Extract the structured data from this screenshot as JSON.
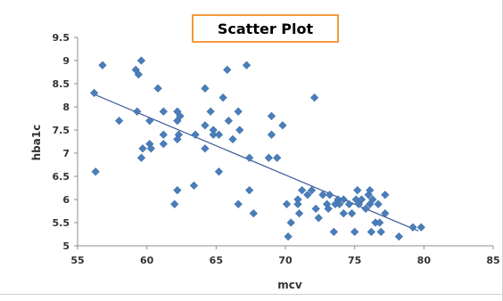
{
  "chart_data": {
    "type": "scatter",
    "title": "Scatter Plot",
    "xlabel": "mcv",
    "ylabel": "hba1c",
    "xlim": [
      55,
      85
    ],
    "ylim": [
      5,
      9.5
    ],
    "x_ticks": [
      "55",
      "60",
      "65",
      "70",
      "75",
      "80",
      "85"
    ],
    "y_ticks": [
      "5",
      "5.5",
      "6",
      "6.5",
      "7",
      "7.5",
      "8",
      "8.5",
      "9",
      "9.5"
    ],
    "grid": false,
    "legend": "none",
    "marker": "diamond",
    "point_color": "#4a7ebb",
    "trendline": {
      "type": "linear",
      "color": "#3b5998",
      "x": [
        56.2,
        79.6
      ],
      "y": [
        8.27,
        5.32
      ]
    },
    "points": [
      {
        "x": 56.2,
        "y": 8.3
      },
      {
        "x": 56.8,
        "y": 8.9
      },
      {
        "x": 56.3,
        "y": 6.6
      },
      {
        "x": 58.0,
        "y": 7.7
      },
      {
        "x": 59.2,
        "y": 8.8
      },
      {
        "x": 59.6,
        "y": 9.0
      },
      {
        "x": 59.4,
        "y": 8.7
      },
      {
        "x": 59.3,
        "y": 7.9
      },
      {
        "x": 59.7,
        "y": 7.1
      },
      {
        "x": 59.6,
        "y": 6.9
      },
      {
        "x": 60.2,
        "y": 7.7
      },
      {
        "x": 60.2,
        "y": 7.2
      },
      {
        "x": 60.3,
        "y": 7.1
      },
      {
        "x": 60.8,
        "y": 8.4
      },
      {
        "x": 61.2,
        "y": 7.9
      },
      {
        "x": 61.2,
        "y": 7.4
      },
      {
        "x": 61.2,
        "y": 7.2
      },
      {
        "x": 62.0,
        "y": 5.9
      },
      {
        "x": 62.2,
        "y": 7.9
      },
      {
        "x": 62.2,
        "y": 7.7
      },
      {
        "x": 62.3,
        "y": 7.4
      },
      {
        "x": 62.2,
        "y": 7.3
      },
      {
        "x": 62.4,
        "y": 7.8
      },
      {
        "x": 62.2,
        "y": 6.2
      },
      {
        "x": 63.4,
        "y": 6.3
      },
      {
        "x": 63.5,
        "y": 7.4
      },
      {
        "x": 64.2,
        "y": 8.4
      },
      {
        "x": 64.2,
        "y": 7.6
      },
      {
        "x": 64.2,
        "y": 7.1
      },
      {
        "x": 64.6,
        "y": 7.9
      },
      {
        "x": 64.8,
        "y": 7.5
      },
      {
        "x": 64.8,
        "y": 7.4
      },
      {
        "x": 65.2,
        "y": 7.4
      },
      {
        "x": 65.2,
        "y": 6.6
      },
      {
        "x": 65.5,
        "y": 8.2
      },
      {
        "x": 65.8,
        "y": 8.8
      },
      {
        "x": 65.9,
        "y": 7.7
      },
      {
        "x": 66.2,
        "y": 7.3
      },
      {
        "x": 66.6,
        "y": 7.9
      },
      {
        "x": 66.7,
        "y": 7.5
      },
      {
        "x": 66.6,
        "y": 5.9
      },
      {
        "x": 67.2,
        "y": 8.9
      },
      {
        "x": 67.4,
        "y": 6.9
      },
      {
        "x": 67.4,
        "y": 6.2
      },
      {
        "x": 67.7,
        "y": 5.7
      },
      {
        "x": 68.8,
        "y": 6.9
      },
      {
        "x": 69.0,
        "y": 7.8
      },
      {
        "x": 69.0,
        "y": 7.4
      },
      {
        "x": 69.4,
        "y": 6.9
      },
      {
        "x": 69.8,
        "y": 7.6
      },
      {
        "x": 70.1,
        "y": 5.9
      },
      {
        "x": 70.2,
        "y": 5.2
      },
      {
        "x": 70.4,
        "y": 5.5
      },
      {
        "x": 70.9,
        "y": 6.0
      },
      {
        "x": 70.9,
        "y": 5.9
      },
      {
        "x": 71.0,
        "y": 5.7
      },
      {
        "x": 71.2,
        "y": 6.2
      },
      {
        "x": 71.6,
        "y": 6.1
      },
      {
        "x": 71.9,
        "y": 6.2
      },
      {
        "x": 72.1,
        "y": 8.2
      },
      {
        "x": 72.2,
        "y": 5.8
      },
      {
        "x": 72.4,
        "y": 5.6
      },
      {
        "x": 72.7,
        "y": 6.1
      },
      {
        "x": 73.0,
        "y": 5.9
      },
      {
        "x": 73.1,
        "y": 5.8
      },
      {
        "x": 73.2,
        "y": 6.1
      },
      {
        "x": 73.5,
        "y": 5.3
      },
      {
        "x": 73.6,
        "y": 5.9
      },
      {
        "x": 73.8,
        "y": 6.0
      },
      {
        "x": 73.9,
        "y": 5.9
      },
      {
        "x": 74.2,
        "y": 5.7
      },
      {
        "x": 74.2,
        "y": 6.0
      },
      {
        "x": 74.6,
        "y": 5.9
      },
      {
        "x": 74.8,
        "y": 5.7
      },
      {
        "x": 75.0,
        "y": 5.3
      },
      {
        "x": 75.1,
        "y": 6.0
      },
      {
        "x": 75.2,
        "y": 6.2
      },
      {
        "x": 75.3,
        "y": 5.9
      },
      {
        "x": 75.5,
        "y": 6.0
      },
      {
        "x": 75.8,
        "y": 5.8
      },
      {
        "x": 76.0,
        "y": 6.1
      },
      {
        "x": 76.1,
        "y": 5.9
      },
      {
        "x": 76.1,
        "y": 6.2
      },
      {
        "x": 76.2,
        "y": 5.3
      },
      {
        "x": 76.3,
        "y": 6.0
      },
      {
        "x": 76.5,
        "y": 5.5
      },
      {
        "x": 76.7,
        "y": 5.9
      },
      {
        "x": 76.8,
        "y": 5.5
      },
      {
        "x": 76.9,
        "y": 5.3
      },
      {
        "x": 77.2,
        "y": 6.1
      },
      {
        "x": 77.2,
        "y": 5.7
      },
      {
        "x": 78.2,
        "y": 5.2
      },
      {
        "x": 79.2,
        "y": 5.4
      },
      {
        "x": 79.8,
        "y": 5.4
      }
    ]
  }
}
